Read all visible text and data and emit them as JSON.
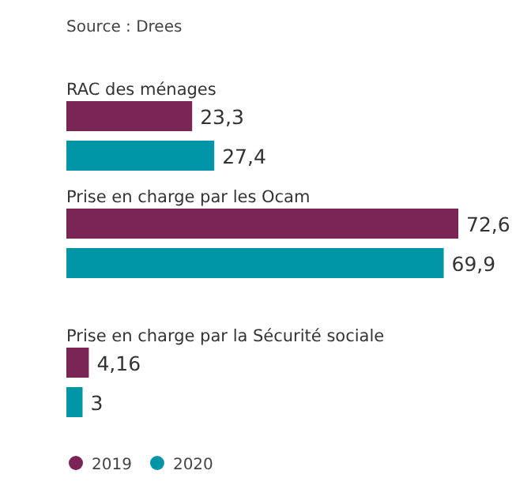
{
  "chart_data": {
    "type": "bar",
    "orientation": "horizontal",
    "categories": [
      "RAC des ménages",
      "Prise en charge par les Ocam",
      "Prise en charge par la Sécurité sociale"
    ],
    "series": [
      {
        "name": "2019",
        "color": "#7b2556",
        "values": [
          23.3,
          72.6,
          4.16
        ],
        "value_labels": [
          "23,3",
          "72,6",
          "4,16"
        ]
      },
      {
        "name": "2020",
        "color": "#0096a8",
        "values": [
          27.4,
          69.9,
          3
        ],
        "value_labels": [
          "27,4",
          "69,9",
          "3"
        ]
      }
    ],
    "annotations": [
      "Source : Drees"
    ],
    "legend": "bottom left"
  }
}
